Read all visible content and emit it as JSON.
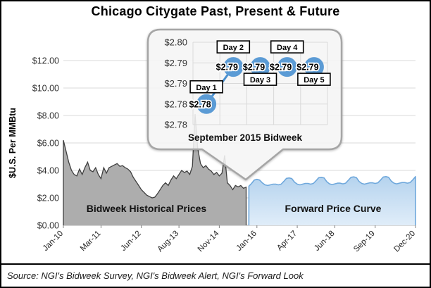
{
  "title": "Chicago Citygate Past, Present & Future",
  "source": "Source: NGI's Bidweek Survey, NGI's Bidweek Alert, NGI's Forward Look",
  "y_axis": {
    "title": "$U.S. Per MMBtu",
    "ticks": [
      {
        "label": "$12.00",
        "value": 12
      },
      {
        "label": "$10.00",
        "value": 10
      },
      {
        "label": "$8.00",
        "value": 8
      },
      {
        "label": "$6.00",
        "value": 6
      },
      {
        "label": "$4.00",
        "value": 4
      },
      {
        "label": "$2.00",
        "value": 2
      },
      {
        "label": "$0.00",
        "value": 0
      }
    ]
  },
  "x_axis": {
    "ticks": [
      {
        "label": "Jan-10",
        "month": 0
      },
      {
        "label": "Mar-11",
        "month": 14
      },
      {
        "label": "Jun-12",
        "month": 29
      },
      {
        "label": "Aug-13",
        "month": 43
      },
      {
        "label": "Nov-14",
        "month": 58
      },
      {
        "label": "Jan-16",
        "month": 72
      },
      {
        "label": "Apr-17",
        "month": 87
      },
      {
        "label": "Jun-18",
        "month": 101
      },
      {
        "label": "Sep-19",
        "month": 116
      },
      {
        "label": "Dec-20",
        "month": 131
      }
    ]
  },
  "series_labels": {
    "historical": "Bidweek Historical Prices",
    "forward": "Forward Price Curve"
  },
  "callout": {
    "caption": "September 2015 Bidweek",
    "y_ticks": [
      {
        "label": "$2.80",
        "value": 2.8
      },
      {
        "label": "$2.79",
        "value": 2.795
      },
      {
        "label": "$2.79",
        "value": 2.79
      },
      {
        "label": "$2.78",
        "value": 2.785
      },
      {
        "label": "$2.78",
        "value": 2.78
      }
    ],
    "days": [
      {
        "label": "Day 1",
        "value_label": "$2.78",
        "value": 2.785,
        "label_pos": "above"
      },
      {
        "label": "Day 2",
        "value_label": "$2.79",
        "value": 2.794,
        "label_pos": "high"
      },
      {
        "label": "Day 3",
        "value_label": "$2.79",
        "value": 2.794,
        "label_pos": "below"
      },
      {
        "label": "Day 4",
        "value_label": "$2.79",
        "value": 2.794,
        "label_pos": "high"
      },
      {
        "label": "Day 5",
        "value_label": "$2.79",
        "value": 2.794,
        "label_pos": "below"
      }
    ]
  },
  "chart_data": {
    "type": "area",
    "title": "Chicago Citygate Past, Present & Future",
    "ylabel": "$U.S. Per MMBtu",
    "ylim": [
      0,
      13
    ],
    "x_unit": "months since Jan-2010",
    "series": [
      {
        "name": "Bidweek Historical Prices",
        "start_month_index": 0,
        "values": [
          6.2,
          5.4,
          4.6,
          4.0,
          3.7,
          3.6,
          4.1,
          3.7,
          4.2,
          4.6,
          4.0,
          3.9,
          4.2,
          3.7,
          3.4,
          4.2,
          3.8,
          4.2,
          4.3,
          4.4,
          4.5,
          4.3,
          4.35,
          4.2,
          4.1,
          3.9,
          3.5,
          3.2,
          2.9,
          2.6,
          2.4,
          2.2,
          2.1,
          2.0,
          2.05,
          2.3,
          2.6,
          2.9,
          3.1,
          2.9,
          3.3,
          3.6,
          3.4,
          3.7,
          4.0,
          3.85,
          3.95,
          3.7,
          4.3,
          8.1,
          5.6,
          4.5,
          4.2,
          4.35,
          4.1,
          3.95,
          3.7,
          3.85,
          3.6,
          3.8,
          5.1,
          3.1,
          2.9,
          2.6,
          2.9,
          2.8,
          2.9,
          2.7,
          2.78
        ]
      },
      {
        "name": "Forward Price Curve",
        "start_month_index": 69,
        "values": [
          2.85,
          3.05,
          3.3,
          3.35,
          3.3,
          3.1,
          2.95,
          2.9,
          2.95,
          3.0,
          3.0,
          2.95,
          3.0,
          3.2,
          3.42,
          3.45,
          3.4,
          3.15,
          3.0,
          2.95,
          3.0,
          3.05,
          3.05,
          3.0,
          3.05,
          3.25,
          3.47,
          3.5,
          3.45,
          3.18,
          3.02,
          2.97,
          3.02,
          3.07,
          3.07,
          3.02,
          3.07,
          3.28,
          3.5,
          3.53,
          3.48,
          3.2,
          3.05,
          3.0,
          3.05,
          3.1,
          3.1,
          3.05,
          3.1,
          3.3,
          3.52,
          3.55,
          3.5,
          3.22,
          3.07,
          3.02,
          3.07,
          3.12,
          3.12,
          3.07,
          3.12,
          3.32,
          3.55
        ]
      }
    ],
    "callout_series": {
      "name": "September 2015 Bidweek",
      "categories": [
        "Day 1",
        "Day 2",
        "Day 3",
        "Day 4",
        "Day 5"
      ],
      "values": [
        2.78,
        2.79,
        2.79,
        2.79,
        2.79
      ]
    }
  },
  "colors": {
    "historical_fill": "#ADADAD",
    "historical_stroke": "#3F3F3F",
    "forward_line": "#6FA8DC",
    "forward_fill_top": "#B5D3EE",
    "forward_fill_bottom": "#E0EDF9",
    "marker_blue": "#5B9BD5",
    "grid": "#D9D9D9",
    "axis": "#BFBFBF",
    "tick_text": "#333333"
  }
}
